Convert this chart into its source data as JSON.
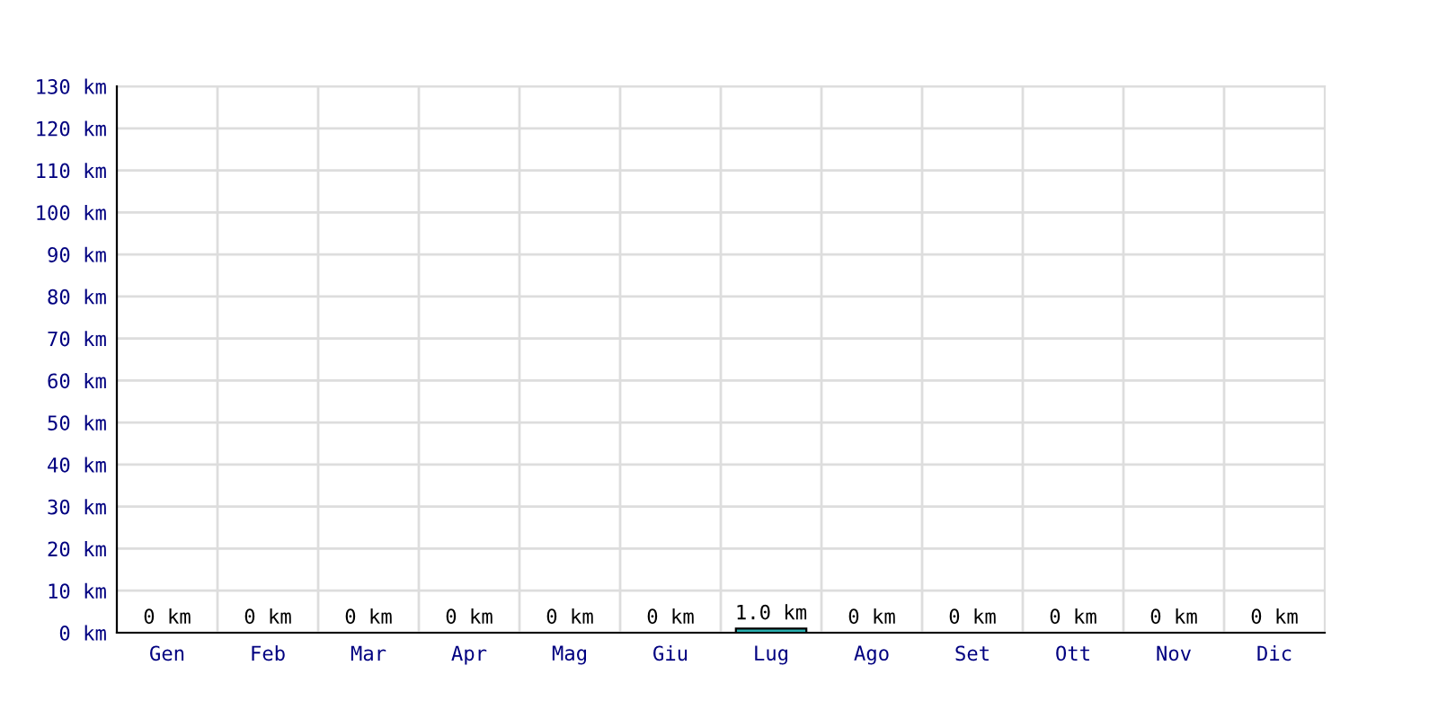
{
  "chart_data": {
    "type": "bar",
    "categories": [
      "Gen",
      "Feb",
      "Mar",
      "Apr",
      "Mag",
      "Giu",
      "Lug",
      "Ago",
      "Set",
      "Ott",
      "Nov",
      "Dic"
    ],
    "values": [
      0,
      0,
      0,
      0,
      0,
      0,
      1.0,
      0,
      0,
      0,
      0,
      0
    ],
    "value_labels": [
      "0 km",
      "0 km",
      "0 km",
      "0 km",
      "0 km",
      "0 km",
      "1.0 km",
      "0 km",
      "0 km",
      "0 km",
      "0 km",
      "0 km"
    ],
    "color": "#2ab0b0",
    "ylim": [
      0,
      130
    ],
    "yticks": [
      {
        "value": 0,
        "label": "0 km"
      },
      {
        "value": 10,
        "label": "10 km"
      },
      {
        "value": 20,
        "label": "20 km"
      },
      {
        "value": 30,
        "label": "30 km"
      },
      {
        "value": 40,
        "label": "40 km"
      },
      {
        "value": 50,
        "label": "50 km"
      },
      {
        "value": 60,
        "label": "60 km"
      },
      {
        "value": 70,
        "label": "70 km"
      },
      {
        "value": 80,
        "label": "80 km"
      },
      {
        "value": 90,
        "label": "90 km"
      },
      {
        "value": 100,
        "label": "100 km"
      },
      {
        "value": 110,
        "label": "110 km"
      },
      {
        "value": 120,
        "label": "120 km"
      },
      {
        "value": 130,
        "label": "130 km"
      }
    ],
    "grid": true
  }
}
